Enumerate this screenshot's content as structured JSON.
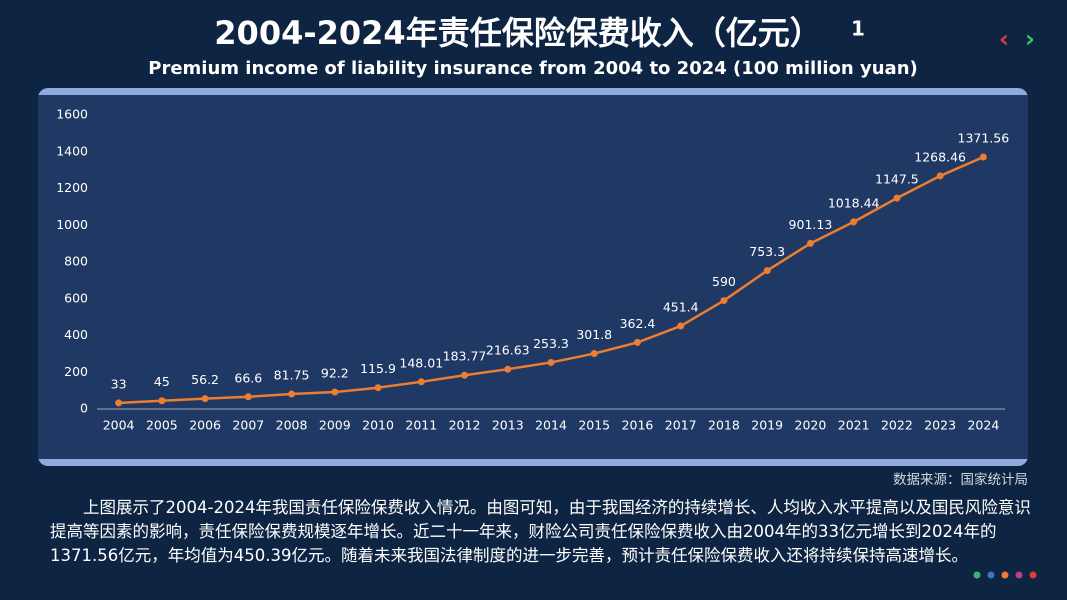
{
  "chart_data": {
    "type": "line",
    "title": "2004-2024年责任保险保费收入（亿元）",
    "subtitle": "Premium income of liability insurance from 2004 to 2024 (100 million yuan)",
    "categories": [
      "2004",
      "2005",
      "2006",
      "2007",
      "2008",
      "2009",
      "2010",
      "2011",
      "2012",
      "2013",
      "2014",
      "2015",
      "2016",
      "2017",
      "2018",
      "2019",
      "2020",
      "2021",
      "2022",
      "2023",
      "2024"
    ],
    "series": [
      {
        "name": "责任保险保费收入",
        "color": "#ed7d31",
        "values": [
          33,
          45,
          56.2,
          66.6,
          81.75,
          92.2,
          115.9,
          148.01,
          183.77,
          216.63,
          253.3,
          301.8,
          362.4,
          451.4,
          590,
          753.3,
          901.13,
          1018.44,
          1147.5,
          1268.46,
          1371.56
        ]
      }
    ],
    "ylim": [
      0,
      1600
    ],
    "yticks": [
      0,
      200,
      400,
      600,
      800,
      1000,
      1200,
      1400,
      1600
    ]
  },
  "footnote_marker": "1",
  "nav": [
    "‹",
    "›"
  ],
  "source": "数据来源：国家统计局",
  "paragraph": "上图展示了2004-2024年我国责任保险保费收入情况。由图可知，由于我国经济的持续增长、人均收入水平提高以及国民风险意识提高等因素的影响，责任保险保费规模逐年增长。近二十一年来，财险公司责任保险保费收入由2004年的33亿元增长到2024年的1371.56亿元，年均值为450.39亿元。随着未来我国法律制度的进一步完善，预计责任保险保费收入还将持续保持高速增长。"
}
